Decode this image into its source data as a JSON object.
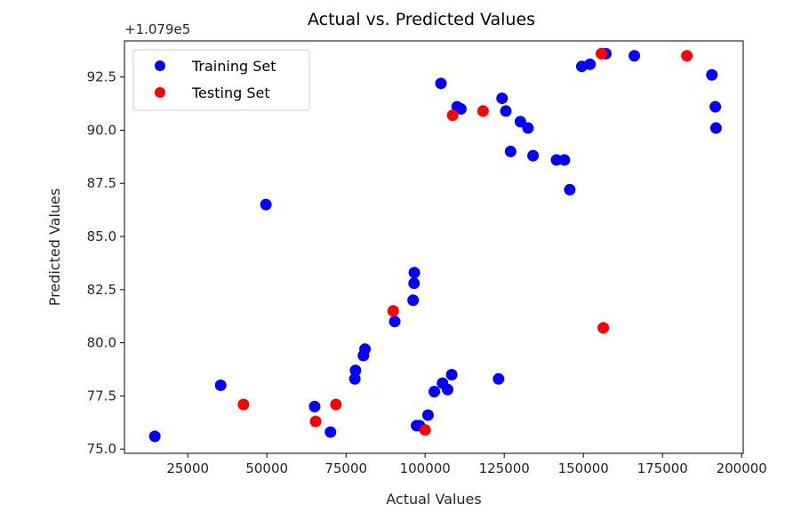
{
  "chart_data": {
    "type": "scatter",
    "title": "Actual vs. Predicted Values",
    "xlabel": "Actual Values",
    "ylabel": "Predicted Values",
    "y_offset_label": "+1.079e5",
    "xlim": [
      5000,
      200500
    ],
    "ylim": [
      74.8,
      94.2
    ],
    "x_ticks": [
      25000,
      50000,
      75000,
      100000,
      125000,
      150000,
      175000,
      200000
    ],
    "x_tick_labels": [
      "25000",
      "50000",
      "75000",
      "100000",
      "125000",
      "150000",
      "175000",
      "200000"
    ],
    "y_ticks": [
      75.0,
      77.5,
      80.0,
      82.5,
      85.0,
      87.5,
      90.0,
      92.5
    ],
    "y_tick_labels": [
      "75.0",
      "77.5",
      "80.0",
      "82.5",
      "85.0",
      "87.5",
      "90.0",
      "92.5"
    ],
    "legend_position": "top-left",
    "grid": false,
    "series": [
      {
        "name": "Training Set",
        "color": "#0000ff",
        "points": [
          [
            14600,
            75.6
          ],
          [
            35400,
            78.0
          ],
          [
            49700,
            86.5
          ],
          [
            65100,
            77.0
          ],
          [
            70100,
            75.8
          ],
          [
            77800,
            78.3
          ],
          [
            78000,
            78.7
          ],
          [
            80500,
            79.4
          ],
          [
            81000,
            79.7
          ],
          [
            90400,
            81.0
          ],
          [
            96200,
            82.0
          ],
          [
            96500,
            82.8
          ],
          [
            96600,
            83.3
          ],
          [
            97300,
            76.1
          ],
          [
            98200,
            76.1
          ],
          [
            100900,
            76.6
          ],
          [
            102900,
            77.7
          ],
          [
            105000,
            92.2
          ],
          [
            105500,
            78.1
          ],
          [
            107100,
            77.8
          ],
          [
            108400,
            78.5
          ],
          [
            110100,
            91.1
          ],
          [
            111300,
            91.0
          ],
          [
            123200,
            78.3
          ],
          [
            124300,
            91.5
          ],
          [
            125500,
            90.9
          ],
          [
            127000,
            89.0
          ],
          [
            130100,
            90.4
          ],
          [
            132500,
            90.1
          ],
          [
            134100,
            88.8
          ],
          [
            141500,
            88.6
          ],
          [
            144000,
            88.6
          ],
          [
            145700,
            87.2
          ],
          [
            149500,
            93.0
          ],
          [
            152100,
            93.1
          ],
          [
            157100,
            93.6
          ],
          [
            166100,
            93.5
          ],
          [
            190600,
            92.6
          ],
          [
            191700,
            91.1
          ],
          [
            191900,
            90.1
          ]
        ]
      },
      {
        "name": "Testing Set",
        "color": "#ff0000",
        "points": [
          [
            42600,
            77.1
          ],
          [
            65400,
            76.3
          ],
          [
            71800,
            77.1
          ],
          [
            89900,
            81.5
          ],
          [
            100000,
            75.9
          ],
          [
            108700,
            90.7
          ],
          [
            118300,
            90.9
          ],
          [
            155700,
            93.6
          ],
          [
            156300,
            80.7
          ],
          [
            182700,
            93.5
          ]
        ]
      }
    ]
  }
}
